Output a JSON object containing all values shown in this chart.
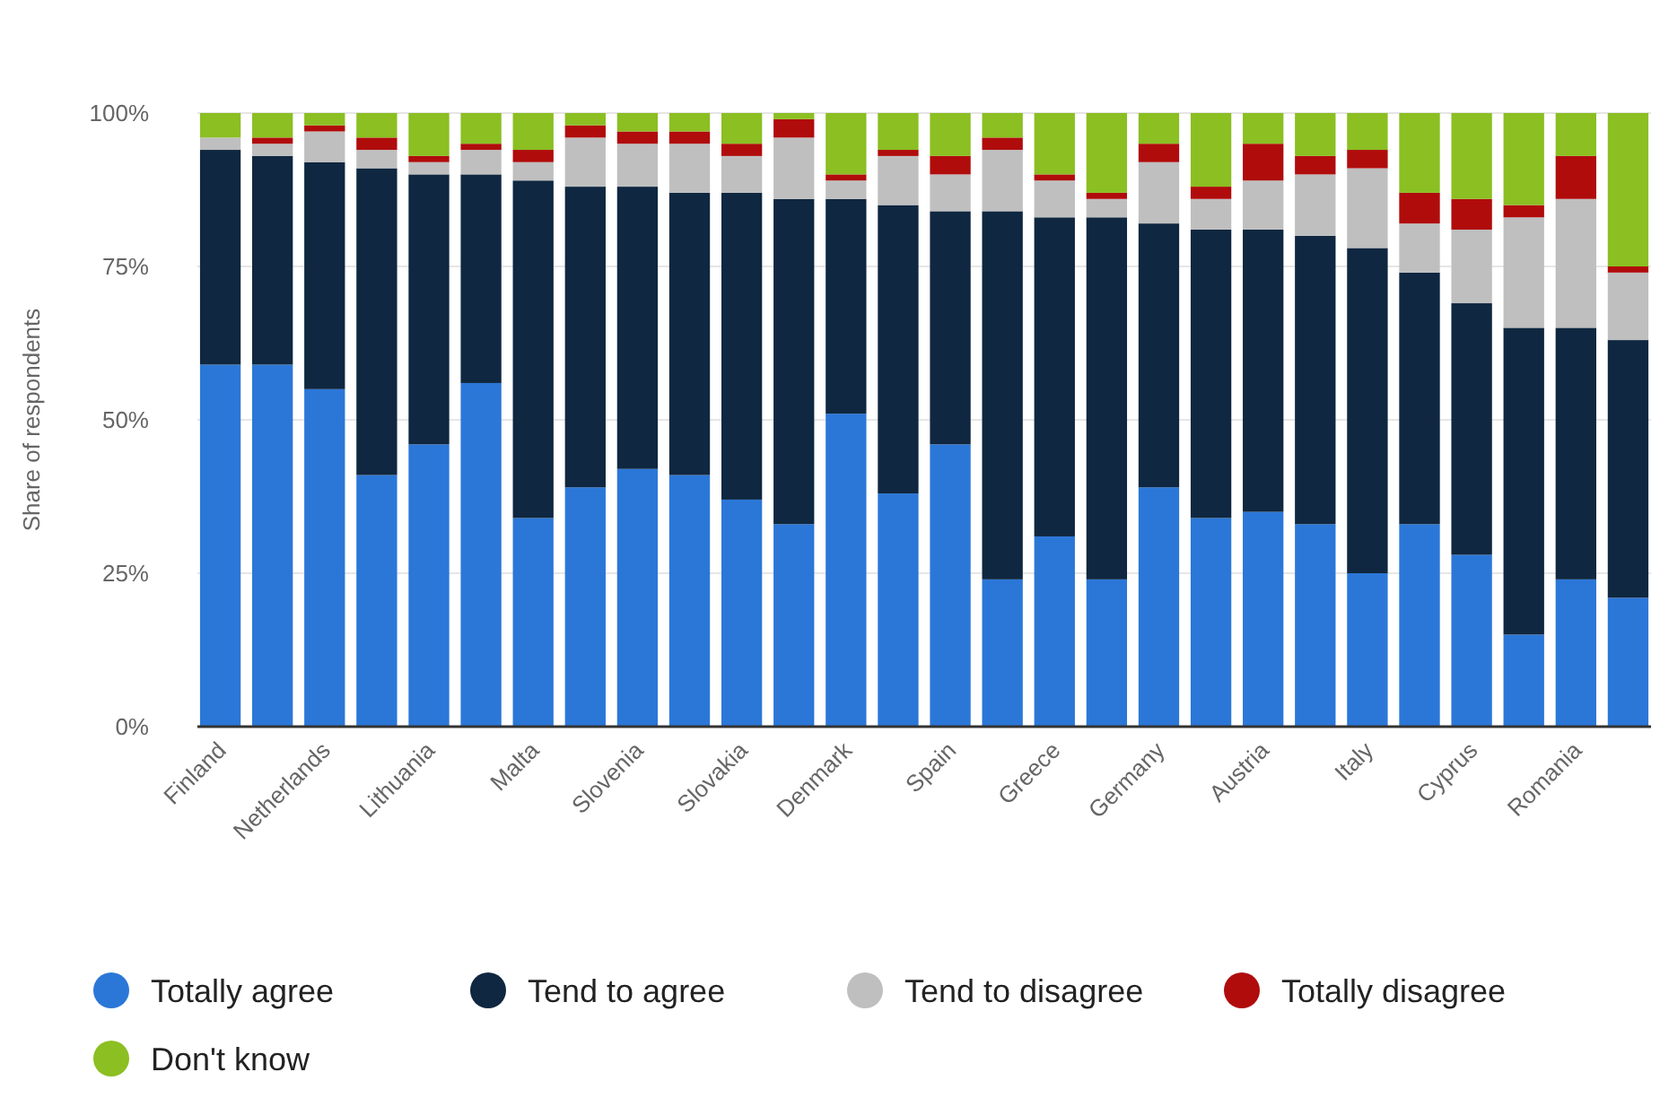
{
  "chart_data": {
    "type": "bar",
    "stacked": true,
    "ylabel": "Share of respondents",
    "categories": [
      "Finland",
      null,
      "Netherlands",
      null,
      "Lithuania",
      null,
      "Malta",
      null,
      "Slovenia",
      null,
      "Slovakia",
      null,
      "Denmark",
      null,
      "Spain",
      null,
      "Greece",
      null,
      "Germany",
      null,
      "Austria",
      null,
      "Italy",
      null,
      "Cyprus",
      null,
      "Romania",
      null
    ],
    "series": [
      {
        "name": "Totally agree",
        "color": "#2b77d8",
        "values": [
          59,
          59,
          55,
          41,
          46,
          56,
          34,
          39,
          42,
          41,
          37,
          33,
          51,
          38,
          46,
          24,
          31,
          24,
          39,
          34,
          35,
          33,
          25,
          33,
          28,
          15,
          24,
          21
        ]
      },
      {
        "name": "Tend to agree",
        "color": "#0f2740",
        "values": [
          35,
          34,
          37,
          50,
          44,
          34,
          55,
          49,
          46,
          46,
          50,
          53,
          35,
          47,
          38,
          60,
          52,
          59,
          43,
          47,
          46,
          47,
          53,
          41,
          41,
          50,
          41,
          42
        ]
      },
      {
        "name": "Tend to disagree",
        "color": "#bfbfbf",
        "values": [
          2,
          2,
          5,
          3,
          2,
          4,
          3,
          8,
          7,
          8,
          6,
          10,
          3,
          8,
          6,
          10,
          6,
          3,
          10,
          5,
          8,
          10,
          13,
          8,
          12,
          18,
          21,
          11
        ]
      },
      {
        "name": "Totally disagree",
        "color": "#b00c0c",
        "values": [
          0,
          1,
          1,
          2,
          1,
          1,
          2,
          2,
          2,
          2,
          2,
          3,
          1,
          1,
          3,
          2,
          1,
          1,
          3,
          2,
          6,
          3,
          3,
          5,
          5,
          2,
          7,
          1
        ]
      },
      {
        "name": "Don't know",
        "color": "#8bbf22",
        "values": [
          4,
          4,
          2,
          4,
          7,
          5,
          6,
          2,
          3,
          3,
          5,
          1,
          10,
          6,
          7,
          4,
          10,
          13,
          5,
          12,
          5,
          7,
          6,
          13,
          14,
          15,
          7,
          25
        ]
      }
    ],
    "ylim": [
      0,
      100
    ],
    "yticks": [
      {
        "value": 0,
        "label": "0%"
      },
      {
        "value": 25,
        "label": "25%"
      },
      {
        "value": 50,
        "label": "50%"
      },
      {
        "value": 75,
        "label": "75%"
      },
      {
        "value": 100,
        "label": "100%"
      }
    ],
    "grid": "y",
    "legend": "bottom"
  }
}
